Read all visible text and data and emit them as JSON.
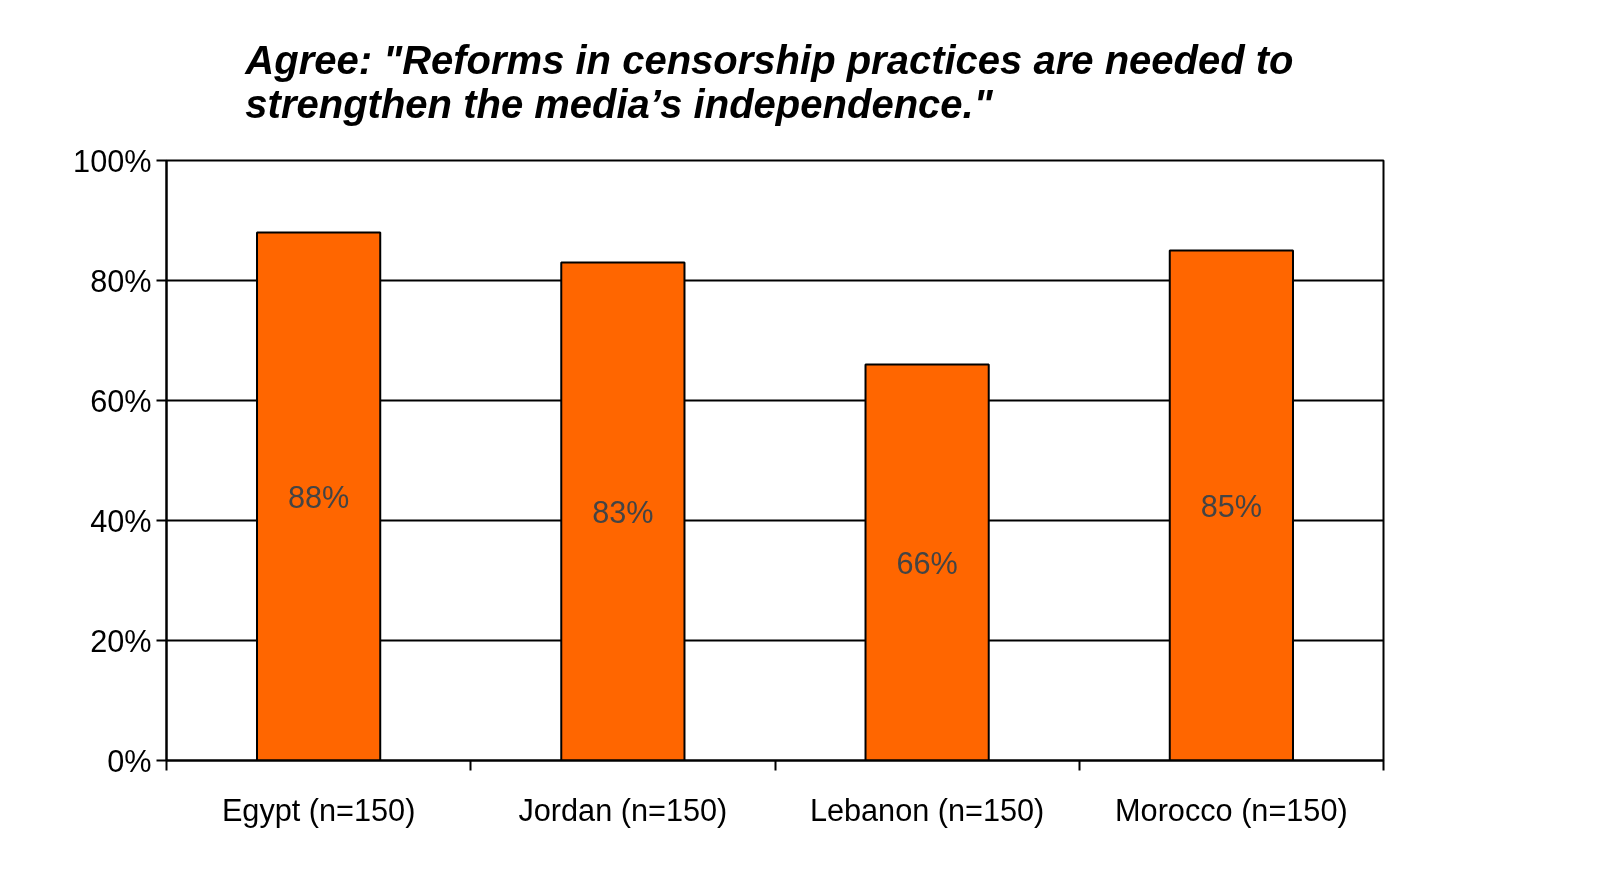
{
  "chart_data": {
    "type": "bar",
    "title": "Agree:  \"Reforms in censorship practices are needed to strengthen the media’s independence.\"",
    "categories": [
      "Egypt (n=150)",
      "Jordan (n=150)",
      "Lebanon (n=150)",
      "Morocco (n=150)"
    ],
    "values": [
      88,
      83,
      66,
      85
    ],
    "color": "#ff6600",
    "value_labels": [
      "88%",
      "83%",
      "66%",
      "85%"
    ],
    "ylim": [
      0,
      100
    ],
    "yticks": [
      {
        "value": 0,
        "label": "0%"
      },
      {
        "value": 20,
        "label": "20%"
      },
      {
        "value": 40,
        "label": "40%"
      },
      {
        "value": 60,
        "label": "60%"
      },
      {
        "value": 80,
        "label": "80%"
      },
      {
        "value": 100,
        "label": "100%"
      }
    ],
    "grid": "y"
  }
}
